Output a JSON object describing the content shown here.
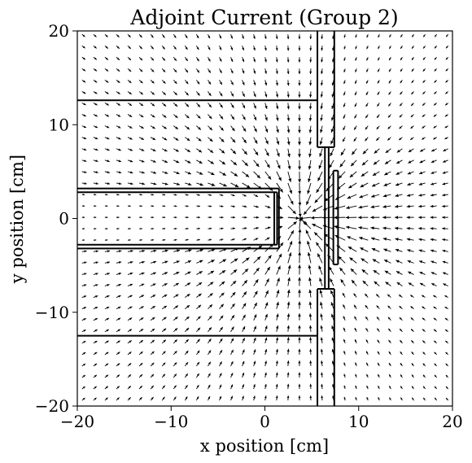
{
  "chart_data": {
    "type": "quiver",
    "title": "Adjoint Current (Group 2)",
    "xlabel": "x position [cm]",
    "ylabel": "y position [cm]",
    "xlim": [
      -20,
      20
    ],
    "ylim": [
      -20,
      20
    ],
    "xticks": [
      -20,
      -10,
      0,
      10,
      20
    ],
    "yticks": [
      -20,
      -10,
      0,
      10,
      20
    ],
    "tick_labels": {
      "x": [
        "−20",
        "−10",
        "0",
        "10",
        "20"
      ],
      "y": [
        "−20",
        "−10",
        "0",
        "10",
        "20"
      ]
    },
    "grid": false,
    "field": {
      "grid_spacing": 1.22,
      "center": [
        3.8,
        0
      ],
      "description_values": {
        "sink_x": 3.8,
        "sink_y": 0
      }
    },
    "geometry_lines": [
      {
        "x": [
          -20,
          5.6
        ],
        "y": [
          12.6,
          12.6
        ]
      },
      {
        "x": [
          -20,
          5.6
        ],
        "y": [
          -12.5,
          -12.5
        ]
      },
      {
        "x": [
          5.6,
          5.6
        ],
        "y": [
          20,
          7.6
        ]
      },
      {
        "x": [
          5.6,
          5.6
        ],
        "y": [
          -7.5,
          -20
        ]
      },
      {
        "x": [
          7.4,
          7.4
        ],
        "y": [
          20,
          7.6
        ]
      },
      {
        "x": [
          7.4,
          7.4
        ],
        "y": [
          -7.5,
          -20
        ]
      },
      {
        "x": [
          5.6,
          7.4
        ],
        "y": [
          7.6,
          7.6
        ]
      },
      {
        "x": [
          5.6,
          7.4
        ],
        "y": [
          -7.5,
          -7.5
        ]
      },
      {
        "x": [
          6.4,
          6.4
        ],
        "y": [
          7.6,
          -7.5
        ]
      },
      {
        "x": [
          6.8,
          6.8
        ],
        "y": [
          7.6,
          -7.5
        ]
      },
      {
        "x": [
          7.3,
          7.3
        ],
        "y": [
          5.1,
          -4.9
        ]
      },
      {
        "x": [
          7.8,
          7.8
        ],
        "y": [
          5.1,
          -4.9
        ]
      },
      {
        "x": [
          7.3,
          7.8
        ],
        "y": [
          5.1,
          5.1
        ]
      },
      {
        "x": [
          7.3,
          7.8
        ],
        "y": [
          -4.9,
          -4.9
        ]
      },
      {
        "x": [
          -20,
          1.5
        ],
        "y": [
          3.2,
          3.2
        ]
      },
      {
        "x": [
          -20,
          1.3
        ],
        "y": [
          2.8,
          2.8
        ]
      },
      {
        "x": [
          -20,
          1.5
        ],
        "y": [
          -3.2,
          -3.2
        ]
      },
      {
        "x": [
          -20,
          1.3
        ],
        "y": [
          -2.8,
          -2.8
        ]
      },
      {
        "x": [
          1.0,
          1.0
        ],
        "y": [
          2.8,
          -2.8
        ]
      },
      {
        "x": [
          1.3,
          1.3
        ],
        "y": [
          2.8,
          -2.8
        ]
      },
      {
        "x": [
          1.5,
          1.5
        ],
        "y": [
          3.2,
          -3.2
        ]
      }
    ]
  }
}
